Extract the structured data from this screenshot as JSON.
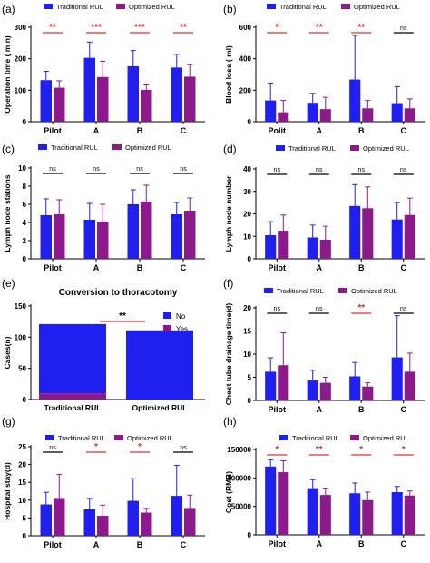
{
  "colors": {
    "traditional": "#1f1ff0",
    "optimized": "#8b1a8b",
    "sig": "#e03030",
    "ns": "#000000",
    "axis": "#000000"
  },
  "chart_data": [
    {
      "id": "a",
      "panel_label": "(a)",
      "type": "bar",
      "ylabel": "Operation time ( min)",
      "ylim": [
        0,
        300
      ],
      "yticks": [
        "0",
        "100",
        "200",
        "300"
      ],
      "ytick_values": [
        0,
        100,
        200,
        300
      ],
      "legend": [
        "Traditional RUL",
        "Optimized RUL"
      ],
      "categories": [
        "Pilot",
        "A",
        "B",
        "C"
      ],
      "series": [
        {
          "name": "Traditional RUL",
          "values": [
            132,
            203,
            176,
            172
          ],
          "errors": [
            28,
            50,
            50,
            42
          ]
        },
        {
          "name": "Optimized RUL",
          "values": [
            108,
            142,
            101,
            143
          ],
          "errors": [
            22,
            50,
            16,
            38
          ]
        }
      ],
      "significance": [
        "**",
        "***",
        "***",
        "**"
      ]
    },
    {
      "id": "b",
      "panel_label": "(b)",
      "type": "bar",
      "ylabel": "Blood loss ( ml)",
      "ylim": [
        0,
        600
      ],
      "yticks": [
        "0",
        "200",
        "400",
        "600"
      ],
      "ytick_values": [
        0,
        200,
        400,
        600
      ],
      "legend": [
        "Traditional RUL",
        "Optimized RUL"
      ],
      "categories": [
        "Polit",
        "A",
        "B",
        "C"
      ],
      "series": [
        {
          "name": "Traditional RUL",
          "values": [
            135,
            120,
            268,
            118
          ],
          "errors": [
            110,
            60,
            280,
            105
          ]
        },
        {
          "name": "Optimized RUL",
          "values": [
            60,
            80,
            85,
            85
          ],
          "errors": [
            75,
            75,
            50,
            60
          ]
        }
      ],
      "significance": [
        "*",
        "**",
        "**",
        "ns"
      ]
    },
    {
      "id": "c",
      "panel_label": "(c)",
      "type": "bar",
      "ylabel": "Lymph node stations",
      "ylim": [
        0,
        10
      ],
      "yticks": [
        "0",
        "2",
        "4",
        "6",
        "8",
        "10"
      ],
      "ytick_values": [
        0,
        2,
        4,
        6,
        8,
        10
      ],
      "legend": [
        "Traditional RUL",
        "Optimized RUL"
      ],
      "categories": [
        "Pilot",
        "A",
        "B",
        "C"
      ],
      "series": [
        {
          "name": "Traditional RUL",
          "values": [
            4.8,
            4.3,
            6.0,
            4.9
          ],
          "errors": [
            1.8,
            1.8,
            1.6,
            1.3
          ]
        },
        {
          "name": "Optimized RUL",
          "values": [
            4.9,
            4.1,
            6.3,
            5.3
          ],
          "errors": [
            1.6,
            1.9,
            1.8,
            1.4
          ]
        }
      ],
      "significance": [
        "ns",
        "ns",
        "ns",
        "ns"
      ]
    },
    {
      "id": "d",
      "panel_label": "(d)",
      "type": "bar",
      "ylabel": "Lymph node number",
      "ylim": [
        0,
        40
      ],
      "yticks": [
        "0",
        "10",
        "20",
        "30",
        "40"
      ],
      "ytick_values": [
        0,
        10,
        20,
        30,
        40
      ],
      "legend": [
        "Traditional RUL",
        "Optimized RUL"
      ],
      "categories": [
        "Pilot",
        "A",
        "B",
        "C"
      ],
      "series": [
        {
          "name": "Traditional RUL",
          "values": [
            10.5,
            9.5,
            23.5,
            17.5
          ],
          "errors": [
            6.0,
            5.5,
            9.5,
            7.5
          ]
        },
        {
          "name": "Optimized RUL",
          "values": [
            12.5,
            8.5,
            22.5,
            19.5
          ],
          "errors": [
            7.0,
            6.0,
            9.5,
            7.5
          ]
        }
      ],
      "significance": [
        "ns",
        "ns",
        "ns",
        "ns"
      ]
    },
    {
      "id": "e",
      "panel_label": "(e)",
      "type": "bar",
      "title": "Conversion to thoracotomy",
      "ylabel": "Cases(n)",
      "ylim": [
        0,
        150
      ],
      "yticks": [
        "0",
        "50",
        "100",
        "150"
      ],
      "ytick_values": [
        0,
        50,
        100,
        150
      ],
      "legend": [
        "No",
        "Yes"
      ],
      "categories": [
        "Traditional RUL",
        "Optimized RUL"
      ],
      "stacked": true,
      "series": [
        {
          "name": "No",
          "values": [
            111,
            111
          ]
        },
        {
          "name": "Yes",
          "values": [
            10,
            0
          ]
        }
      ],
      "significance": [
        "**"
      ]
    },
    {
      "id": "f",
      "panel_label": "(f)",
      "type": "bar",
      "ylabel": "Chest tube drainage time(d)",
      "ylim": [
        0,
        20
      ],
      "yticks": [
        "0",
        "5",
        "10",
        "15",
        "20"
      ],
      "ytick_values": [
        0,
        5,
        10,
        15,
        20
      ],
      "legend": [
        "Traditional RUL",
        "Optimized RUL"
      ],
      "categories": [
        "Pilot",
        "A",
        "B",
        "C"
      ],
      "series": [
        {
          "name": "Traditional RUL",
          "values": [
            6.2,
            4.3,
            5.2,
            9.3
          ],
          "errors": [
            3.0,
            2.2,
            3.0,
            9.0
          ]
        },
        {
          "name": "Optimized RUL",
          "values": [
            7.6,
            3.8,
            3.0,
            6.2
          ],
          "errors": [
            7.0,
            1.2,
            0.8,
            4.0
          ]
        }
      ],
      "significance": [
        "ns",
        "ns",
        "**",
        "ns"
      ]
    },
    {
      "id": "g",
      "panel_label": "(g)",
      "type": "bar",
      "ylabel": "Hospital stay(d)",
      "ylim": [
        0,
        25
      ],
      "yticks": [
        "0",
        "5",
        "10",
        "15",
        "20",
        "25"
      ],
      "ytick_values": [
        0,
        5,
        10,
        15,
        20,
        25
      ],
      "legend": [
        "Traditional RUL",
        "Optimized RUL"
      ],
      "categories": [
        "Pilot",
        "A",
        "B",
        "C"
      ],
      "series": [
        {
          "name": "Traditional RUL",
          "values": [
            8.8,
            7.5,
            9.8,
            11.2
          ],
          "errors": [
            3.4,
            3.0,
            6.2,
            8.6
          ]
        },
        {
          "name": "Optimized RUL",
          "values": [
            10.6,
            5.6,
            6.5,
            7.8
          ],
          "errors": [
            6.6,
            3.0,
            1.2,
            3.6
          ]
        }
      ],
      "significance": [
        "ns",
        "*",
        "*",
        "ns"
      ]
    },
    {
      "id": "h",
      "panel_label": "(h)",
      "type": "bar",
      "ylabel": "Cost (RMB)",
      "ylim": [
        0,
        150000
      ],
      "yticks": [
        "0",
        "50000",
        "100000",
        "150000"
      ],
      "ytick_values": [
        0,
        50000,
        100000,
        150000
      ],
      "legend": [
        "Traditional RUL",
        "Optimized RUL"
      ],
      "categories": [
        "Pilot",
        "A",
        "B",
        "C"
      ],
      "series": [
        {
          "name": "Traditional RUL",
          "values": [
            120000,
            82000,
            73000,
            75000
          ],
          "errors": [
            12000,
            15000,
            18000,
            10000
          ]
        },
        {
          "name": "Optimized RUL",
          "values": [
            110000,
            70000,
            61000,
            69000
          ],
          "errors": [
            20000,
            12000,
            14000,
            8000
          ]
        }
      ],
      "significance": [
        "*",
        "**",
        "*",
        "*"
      ]
    }
  ]
}
